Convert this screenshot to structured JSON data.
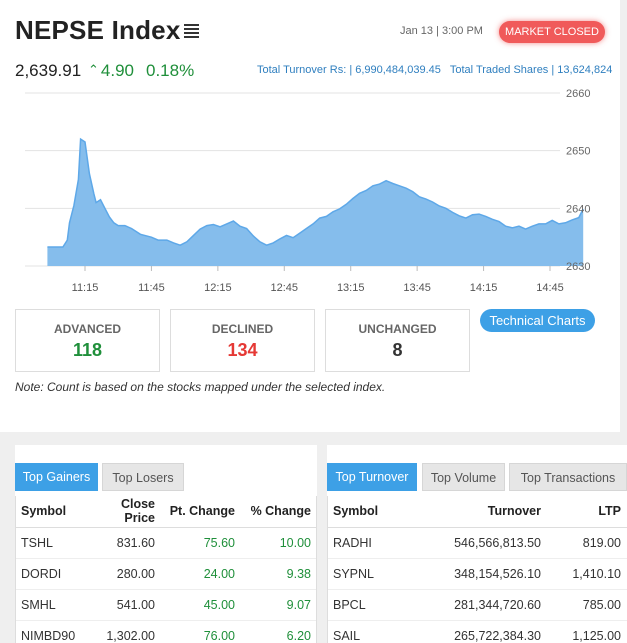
{
  "header": {
    "title": "NEPSE Index",
    "datetime": "Jan 13 | 3:00 PM",
    "market_status": "MARKET CLOSED",
    "menu_icon": "hamburger-list-icon"
  },
  "index": {
    "value": "2,639.91",
    "change": "4.90",
    "change_arrow_icon": "caret-up-icon",
    "percent": "0.18%",
    "turnover_text": "Total Turnover Rs: | 6,990,484,039.45",
    "traded_shares_text": "Total Traded Shares | 13,624,824"
  },
  "chart_data": {
    "type": "area",
    "x": [
      "10:58",
      "11:00",
      "11:03",
      "11:05",
      "11:07",
      "11:08",
      "11:10",
      "11:12",
      "11:13",
      "11:15",
      "11:17",
      "11:19",
      "11:20",
      "11:22",
      "11:24",
      "11:26",
      "11:28",
      "11:30",
      "11:33",
      "11:36",
      "11:40",
      "11:45",
      "11:48",
      "11:52",
      "11:55",
      "11:58",
      "12:01",
      "12:04",
      "12:07",
      "12:10",
      "12:13",
      "12:16",
      "12:19",
      "12:22",
      "12:25",
      "12:28",
      "12:31",
      "12:34",
      "12:37",
      "12:40",
      "12:43",
      "12:46",
      "12:49",
      "12:52",
      "12:55",
      "12:58",
      "13:01",
      "13:04",
      "13:07",
      "13:10",
      "13:13",
      "13:16",
      "13:19",
      "13:22",
      "13:25",
      "13:28",
      "13:31",
      "13:34",
      "13:37",
      "13:40",
      "13:43",
      "13:46",
      "13:49",
      "13:52",
      "13:55",
      "13:58",
      "14:01",
      "14:04",
      "14:07",
      "14:10",
      "14:13",
      "14:16",
      "14:19",
      "14:22",
      "14:25",
      "14:28",
      "14:31",
      "14:34",
      "14:37",
      "14:40",
      "14:43",
      "14:46",
      "14:49",
      "14:52",
      "14:55",
      "14:58",
      "15:00"
    ],
    "values": [
      2633.3,
      2633.3,
      2633.3,
      2633.3,
      2634.5,
      2637.5,
      2640.5,
      2645.0,
      2652.0,
      2651.5,
      2646.0,
      2642.5,
      2641.0,
      2641.5,
      2640.0,
      2638.5,
      2637.5,
      2637.0,
      2637.0,
      2636.5,
      2635.5,
      2635.0,
      2634.5,
      2634.5,
      2634.0,
      2633.6,
      2634.2,
      2635.3,
      2636.4,
      2637.0,
      2637.2,
      2636.8,
      2637.3,
      2637.8,
      2636.9,
      2636.5,
      2635.2,
      2634.2,
      2633.6,
      2634.0,
      2634.7,
      2635.3,
      2634.9,
      2635.7,
      2636.5,
      2637.3,
      2638.3,
      2638.6,
      2639.4,
      2639.9,
      2640.7,
      2641.7,
      2642.6,
      2643.1,
      2643.9,
      2644.2,
      2644.8,
      2644.3,
      2643.9,
      2643.5,
      2642.9,
      2642.0,
      2641.6,
      2641.1,
      2640.4,
      2640.0,
      2639.3,
      2638.7,
      2638.3,
      2638.9,
      2639.0,
      2638.6,
      2638.1,
      2637.7,
      2636.9,
      2636.6,
      2636.9,
      2636.4,
      2636.9,
      2637.3,
      2637.3,
      2637.9,
      2637.3,
      2637.5,
      2638.0,
      2638.4,
      2639.91
    ],
    "x_tick_labels": [
      "11:15",
      "11:45",
      "12:15",
      "12:45",
      "13:15",
      "13:45",
      "14:15",
      "14:45"
    ],
    "y_tick_labels": [
      "2660",
      "2650",
      "2640",
      "2630"
    ],
    "ylim": [
      2630,
      2660
    ],
    "grid": true,
    "fill_color": "#85bdec",
    "line_color": "#5ea8e8"
  },
  "stats": {
    "advanced_label": "ADVANCED",
    "advanced_value": "118",
    "declined_label": "DECLINED",
    "declined_value": "134",
    "unchanged_label": "UNCHANGED",
    "unchanged_value": "8"
  },
  "technical_charts_label": "Technical Charts",
  "note": "Note: Count is based on the stocks mapped under the selected index.",
  "gainers_panel": {
    "tabs": [
      "Top Gainers",
      "Top Losers"
    ],
    "headers": [
      "Symbol",
      "Close Price",
      "Pt. Change",
      "% Change"
    ],
    "rows": [
      [
        "TSHL",
        "831.60",
        "75.60",
        "10.00"
      ],
      [
        "DORDI",
        "280.00",
        "24.00",
        "9.38"
      ],
      [
        "SMHL",
        "541.00",
        "45.00",
        "9.07"
      ],
      [
        "NIMBD90",
        "1,302.00",
        "76.00",
        "6.20"
      ]
    ]
  },
  "turnover_panel": {
    "tabs": [
      "Top Turnover",
      "Top Volume",
      "Top Transactions"
    ],
    "headers": [
      "Symbol",
      "Turnover",
      "LTP"
    ],
    "rows": [
      [
        "RADHI",
        "546,566,813.50",
        "819.00"
      ],
      [
        "SYPNL",
        "348,154,526.10",
        "1,410.10"
      ],
      [
        "BPCL",
        "281,344,720.60",
        "785.00"
      ],
      [
        "SAIL",
        "265,722,384.30",
        "1,125.00"
      ]
    ]
  },
  "colors": {
    "accent": "#3da0e6",
    "positive": "#1f8f3a",
    "negative": "#e53935",
    "closed_badge": "#f05a5a"
  }
}
